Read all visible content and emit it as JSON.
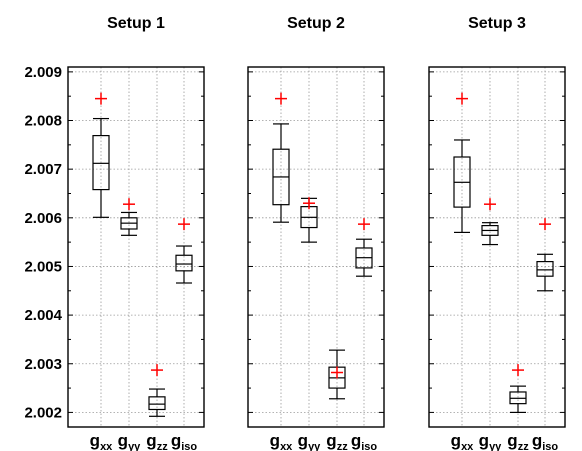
{
  "chart_data": {
    "type": "box",
    "ylim": [
      2.0017,
      2.0091
    ],
    "yticks": [
      "2.002",
      "2.003",
      "2.004",
      "2.005",
      "2.006",
      "2.007",
      "2.008",
      "2.009"
    ],
    "categories": [
      {
        "main": "g",
        "sub": "xx"
      },
      {
        "main": "g",
        "sub": "yy"
      },
      {
        "main": "g",
        "sub": "zz"
      },
      {
        "main": "g",
        "sub": "iso"
      }
    ],
    "grid": true,
    "reference_marker": "red-plus",
    "reference_color": "#ff0000",
    "panels": [
      {
        "title": "Setup 1",
        "reference": [
          2.00845,
          2.00628,
          2.00287,
          2.00587
        ],
        "boxes": [
          {
            "whisker_low": 2.00601,
            "q1": 2.00658,
            "median": 2.00712,
            "q3": 2.00769,
            "whisker_high": 2.00804
          },
          {
            "whisker_low": 2.00564,
            "q1": 2.00577,
            "median": 2.00589,
            "q3": 2.006,
            "whisker_high": 2.00611
          },
          {
            "whisker_low": 2.00192,
            "q1": 2.00206,
            "median": 2.00217,
            "q3": 2.00232,
            "whisker_high": 2.00248
          },
          {
            "whisker_low": 2.00466,
            "q1": 2.00491,
            "median": 2.00505,
            "q3": 2.00523,
            "whisker_high": 2.00542
          }
        ]
      },
      {
        "title": "Setup 2",
        "reference": [
          2.00845,
          2.0063,
          2.00282,
          2.00587
        ],
        "boxes": [
          {
            "whisker_low": 2.00591,
            "q1": 2.00627,
            "median": 2.00684,
            "q3": 2.00741,
            "whisker_high": 2.00793
          },
          {
            "whisker_low": 2.0055,
            "q1": 2.0058,
            "median": 2.00601,
            "q3": 2.00623,
            "whisker_high": 2.0064
          },
          {
            "whisker_low": 2.00228,
            "q1": 2.0025,
            "median": 2.00271,
            "q3": 2.00293,
            "whisker_high": 2.00328
          },
          {
            "whisker_low": 2.0048,
            "q1": 2.00497,
            "median": 2.00518,
            "q3": 2.00538,
            "whisker_high": 2.00556
          }
        ]
      },
      {
        "title": "Setup 3",
        "reference": [
          2.00845,
          2.00628,
          2.00287,
          2.00587
        ],
        "boxes": [
          {
            "whisker_low": 2.0057,
            "q1": 2.00622,
            "median": 2.00673,
            "q3": 2.00725,
            "whisker_high": 2.0076
          },
          {
            "whisker_low": 2.00545,
            "q1": 2.00564,
            "median": 2.00574,
            "q3": 2.00584,
            "whisker_high": 2.0059
          },
          {
            "whisker_low": 2.002,
            "q1": 2.00218,
            "median": 2.00229,
            "q3": 2.00242,
            "whisker_high": 2.00254
          },
          {
            "whisker_low": 2.0045,
            "q1": 2.0048,
            "median": 2.00493,
            "q3": 2.0051,
            "whisker_high": 2.00525
          }
        ]
      }
    ]
  }
}
